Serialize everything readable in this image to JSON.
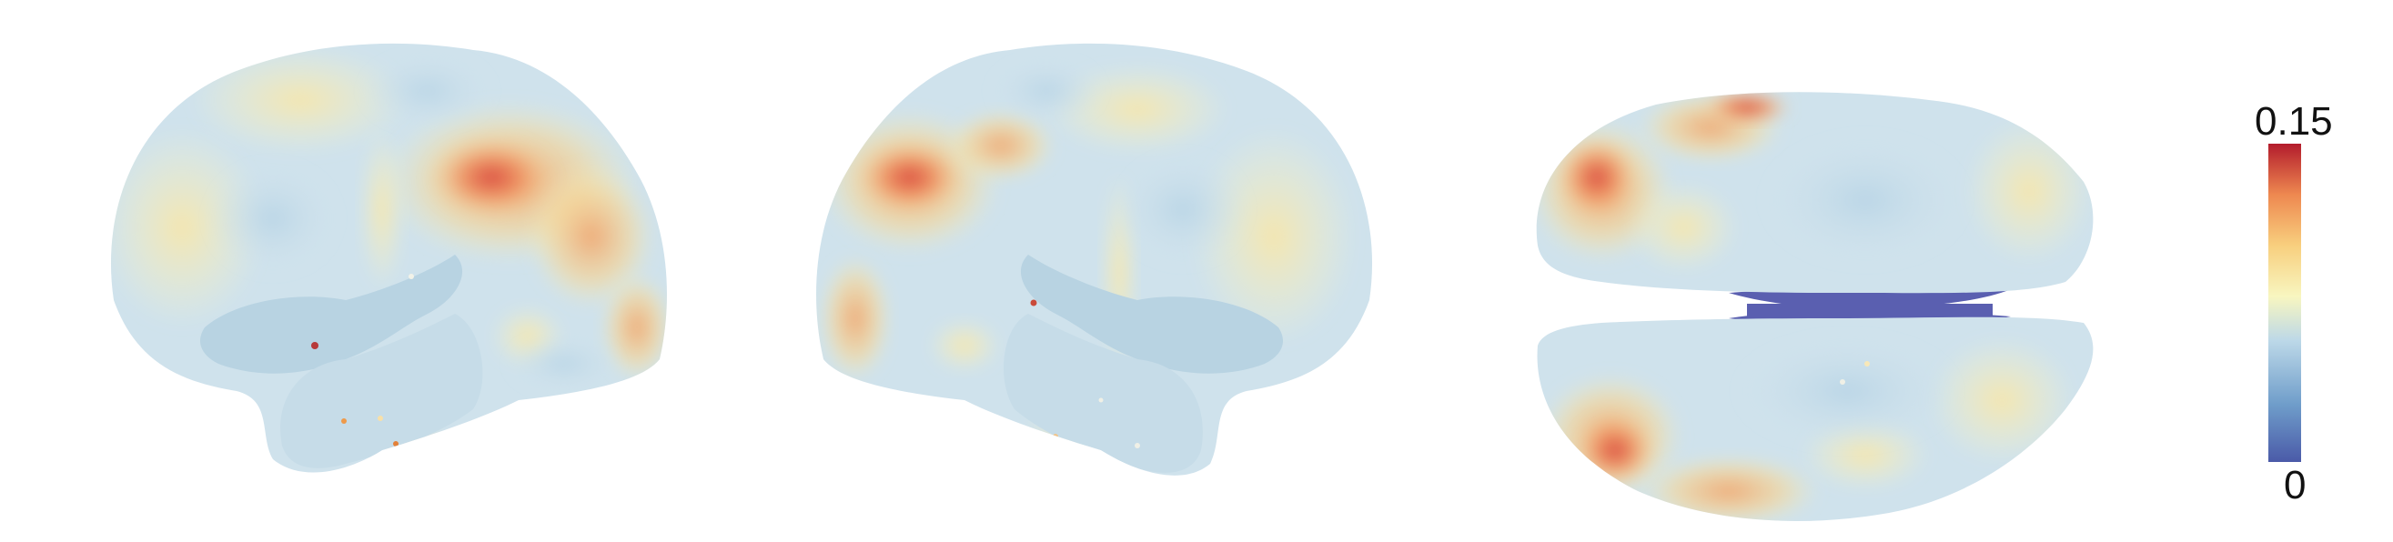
{
  "figure": {
    "views": [
      {
        "name": "lateral-left-hemisphere"
      },
      {
        "name": "lateral-right-hemisphere"
      },
      {
        "name": "ventral-inferior"
      }
    ]
  },
  "colorbar": {
    "max_label": "0.15",
    "min_label": "0",
    "max_value": 0.15,
    "min_value": 0,
    "colors": [
      "#4a5aa8",
      "#6f9dca",
      "#bcd8e8",
      "#f8f6c0",
      "#f8cf7e",
      "#ee8850",
      "#b31c2c"
    ]
  }
}
